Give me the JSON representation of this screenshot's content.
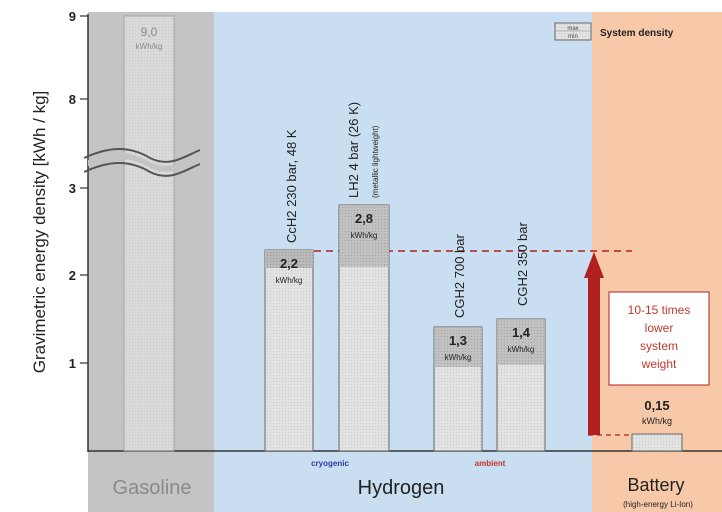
{
  "chart_data": {
    "type": "bar",
    "ylabel": "Gravimetric energy density [kWh / kg]",
    "yticks": [
      "1",
      "2",
      "3",
      "8",
      "9"
    ],
    "axis_break": {
      "from": 3.5,
      "to": 7.5
    },
    "sections": [
      {
        "name": "Gasoline",
        "color": "#c4c4c4"
      },
      {
        "name": "Hydrogen",
        "color": "#c9def0"
      },
      {
        "name": "Battery",
        "sublabel": "(high-energy Li-Ion)",
        "color": "#f7c9a8"
      }
    ],
    "bars": [
      {
        "section": "Gasoline",
        "value": 9.0,
        "value_label": "9,0",
        "unit": "kWh/kg",
        "label": "",
        "sublabel": "",
        "group": ""
      },
      {
        "section": "Hydrogen",
        "value": 2.2,
        "value_label": "2,2",
        "unit": "kWh/kg",
        "label": "CcH2 230 bar, 48 K",
        "sublabel": "",
        "group": "cryogenic"
      },
      {
        "section": "Hydrogen",
        "value": 2.8,
        "value_label": "2,8",
        "unit": "kWh/kg",
        "label": "LH2 4 bar (26 K)",
        "sublabel": "(metallic lightweight)",
        "group": "cryogenic"
      },
      {
        "section": "Hydrogen",
        "value": 1.3,
        "value_label": "1,3",
        "unit": "kWh/kg",
        "label": "CGH2 700 bar",
        "sublabel": "",
        "group": "ambient"
      },
      {
        "section": "Hydrogen",
        "value": 1.4,
        "value_label": "1,4",
        "unit": "kWh/kg",
        "label": "CGH2 350 bar",
        "sublabel": "",
        "group": "ambient"
      },
      {
        "section": "Battery",
        "value": 0.15,
        "value_label": "0,15",
        "unit": "kWh/kg",
        "label": "",
        "sublabel": "",
        "group": ""
      }
    ],
    "group_labels": [
      {
        "text": "cryogenic",
        "color": "#2a3f9e"
      },
      {
        "text": "ambient",
        "color": "#c0392b"
      }
    ],
    "legend": {
      "label": "System density",
      "swatch_top": "max",
      "swatch_bottom": "min",
      "position": "top-right"
    },
    "reference_line": {
      "value": 2.2,
      "color": "#b02020"
    },
    "annotation": {
      "text_lines": [
        "10-15 times",
        "lower",
        "system",
        "weight"
      ],
      "color": "#c0392b"
    }
  }
}
